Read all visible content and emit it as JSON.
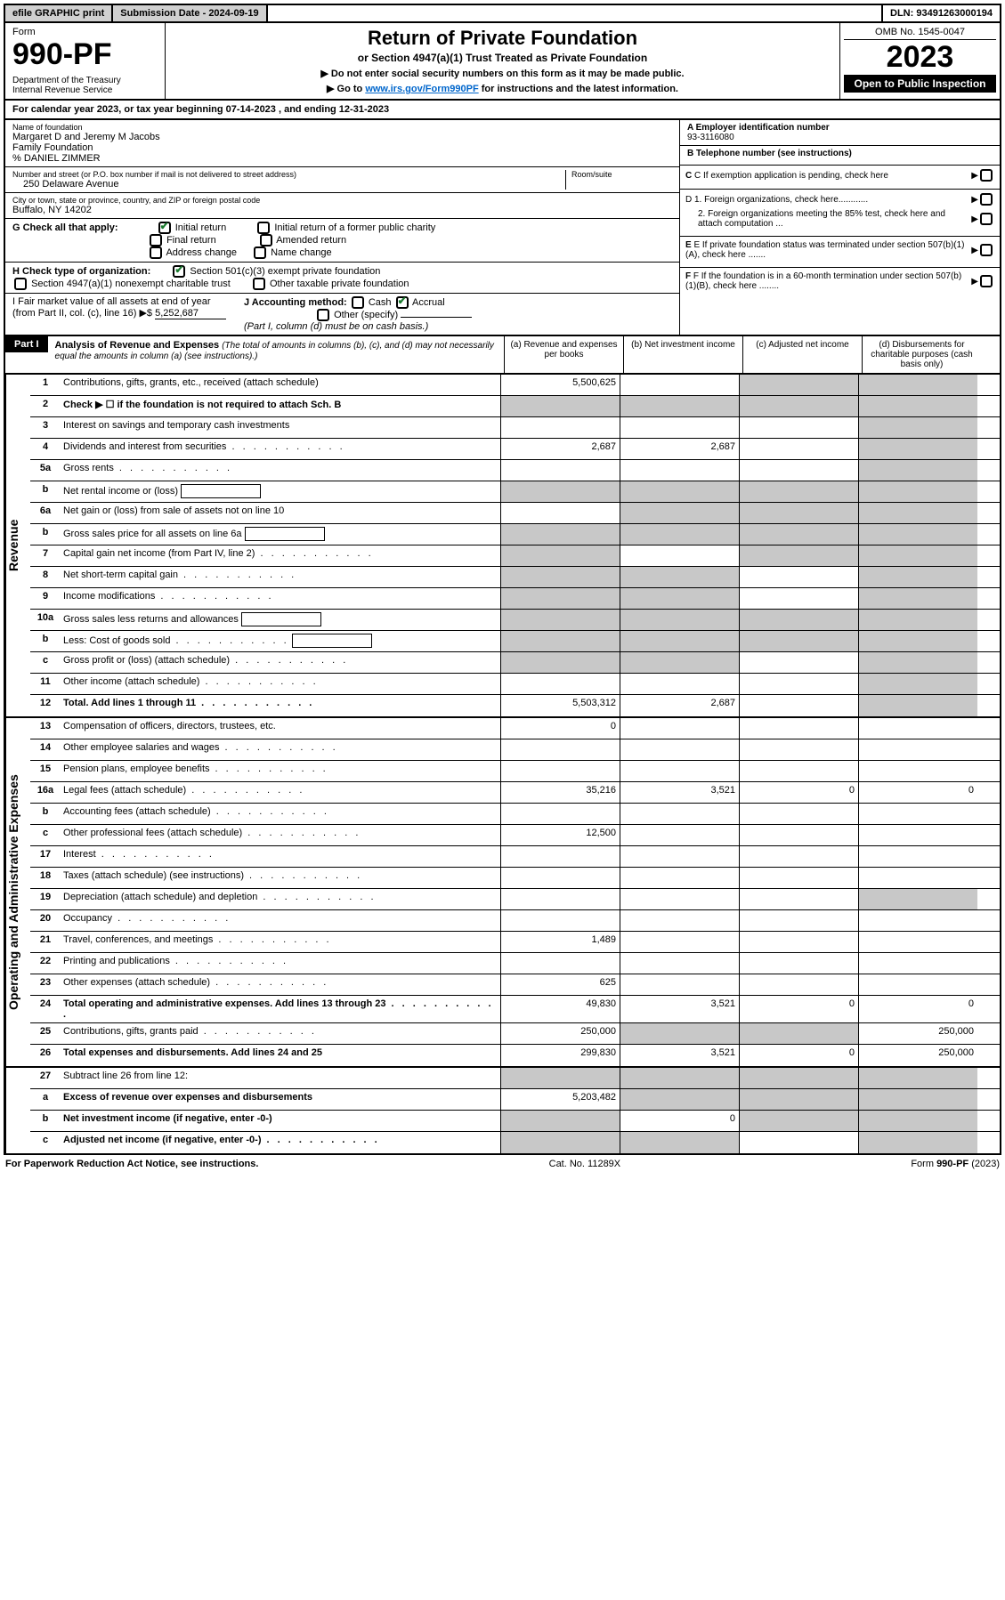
{
  "topbar": {
    "efile": "efile GRAPHIC print",
    "submission": "Submission Date - 2024-09-19",
    "dln": "DLN: 93491263000194"
  },
  "header": {
    "form_label": "Form",
    "form_number": "990-PF",
    "dept1": "Department of the Treasury",
    "dept2": "Internal Revenue Service",
    "title": "Return of Private Foundation",
    "subtitle": "or Section 4947(a)(1) Trust Treated as Private Foundation",
    "notice1": "▶ Do not enter social security numbers on this form as it may be made public.",
    "notice2_pre": "▶ Go to ",
    "notice2_link": "www.irs.gov/Form990PF",
    "notice2_post": " for instructions and the latest information.",
    "omb": "OMB No. 1545-0047",
    "year": "2023",
    "open": "Open to Public Inspection"
  },
  "calyear": "For calendar year 2023, or tax year beginning 07-14-2023            , and ending 12-31-2023",
  "info": {
    "name_label": "Name of foundation",
    "name1": "Margaret D and Jeremy M Jacobs",
    "name2": "Family Foundation",
    "name3": "% DANIEL ZIMMER",
    "addr_label": "Number and street (or P.O. box number if mail is not delivered to street address)",
    "addr": "250 Delaware Avenue",
    "room_label": "Room/suite",
    "city_label": "City or town, state or province, country, and ZIP or foreign postal code",
    "city": "Buffalo, NY  14202",
    "a_label": "A Employer identification number",
    "a_val": "93-3116080",
    "b_label": "B Telephone number (see instructions)",
    "c_label": "C If exemption application is pending, check here",
    "g_label": "G Check all that apply:",
    "g_initial": "Initial return",
    "g_initial_former": "Initial return of a former public charity",
    "g_final": "Final return",
    "g_amended": "Amended return",
    "g_addr": "Address change",
    "g_name": "Name change",
    "d1": "D 1. Foreign organizations, check here............",
    "d2": "2. Foreign organizations meeting the 85% test, check here and attach computation ...",
    "h_label": "H Check type of organization:",
    "h_501c3": "Section 501(c)(3) exempt private foundation",
    "h_4947": "Section 4947(a)(1) nonexempt charitable trust",
    "h_other": "Other taxable private foundation",
    "e_label": "E If private foundation status was terminated under section 507(b)(1)(A), check here .......",
    "i_label": "I Fair market value of all assets at end of year (from Part II, col. (c), line 16)",
    "i_val": "5,252,687",
    "j_label": "J Accounting method:",
    "j_cash": "Cash",
    "j_accrual": "Accrual",
    "j_other": "Other (specify)",
    "j_note": "(Part I, column (d) must be on cash basis.)",
    "f_label": "F If the foundation is in a 60-month termination under section 507(b)(1)(B), check here ........"
  },
  "part1": {
    "label": "Part I",
    "title": "Analysis of Revenue and Expenses",
    "title_note": "(The total of amounts in columns (b), (c), and (d) may not necessarily equal the amounts in column (a) (see instructions).)",
    "col_a": "(a)  Revenue and expenses per books",
    "col_b": "(b)  Net investment income",
    "col_c": "(c)  Adjusted net income",
    "col_d": "(d)  Disbursements for charitable purposes (cash basis only)"
  },
  "sections": {
    "revenue": "Revenue",
    "expenses": "Operating and Administrative Expenses"
  },
  "rows": [
    {
      "n": "1",
      "t": "Contributions, gifts, grants, etc., received (attach schedule)",
      "a": "5,500,625",
      "b": "",
      "c": "s",
      "d": "s"
    },
    {
      "n": "2",
      "t": "Check ▶ ☐ if the foundation is not required to attach Sch. B",
      "bold": true,
      "wide": true
    },
    {
      "n": "3",
      "t": "Interest on savings and temporary cash investments",
      "a": "",
      "b": "",
      "c": "",
      "d": "s"
    },
    {
      "n": "4",
      "t": "Dividends and interest from securities",
      "dots": true,
      "a": "2,687",
      "b": "2,687",
      "c": "",
      "d": "s"
    },
    {
      "n": "5a",
      "t": "Gross rents",
      "dots": true,
      "a": "",
      "b": "",
      "c": "",
      "d": "s"
    },
    {
      "n": "b",
      "t": "Net rental income or (loss)",
      "inline": true,
      "a": "s",
      "b": "s",
      "c": "s",
      "d": "s"
    },
    {
      "n": "6a",
      "t": "Net gain or (loss) from sale of assets not on line 10",
      "a": "",
      "b": "s",
      "c": "s",
      "d": "s"
    },
    {
      "n": "b",
      "t": "Gross sales price for all assets on line 6a",
      "inline": true,
      "a": "s",
      "b": "s",
      "c": "s",
      "d": "s"
    },
    {
      "n": "7",
      "t": "Capital gain net income (from Part IV, line 2)",
      "dots": true,
      "a": "s",
      "b": "",
      "c": "s",
      "d": "s"
    },
    {
      "n": "8",
      "t": "Net short-term capital gain",
      "dots": true,
      "a": "s",
      "b": "s",
      "c": "",
      "d": "s"
    },
    {
      "n": "9",
      "t": "Income modifications",
      "dots": true,
      "a": "s",
      "b": "s",
      "c": "",
      "d": "s"
    },
    {
      "n": "10a",
      "t": "Gross sales less returns and allowances",
      "inline": true,
      "a": "s",
      "b": "s",
      "c": "s",
      "d": "s"
    },
    {
      "n": "b",
      "t": "Less: Cost of goods sold",
      "dots": true,
      "inline": true,
      "a": "s",
      "b": "s",
      "c": "s",
      "d": "s"
    },
    {
      "n": "c",
      "t": "Gross profit or (loss) (attach schedule)",
      "dots": true,
      "a": "s",
      "b": "s",
      "c": "",
      "d": "s"
    },
    {
      "n": "11",
      "t": "Other income (attach schedule)",
      "dots": true,
      "a": "",
      "b": "",
      "c": "",
      "d": "s"
    },
    {
      "n": "12",
      "t": "Total. Add lines 1 through 11",
      "bold": true,
      "dots": true,
      "a": "5,503,312",
      "b": "2,687",
      "c": "",
      "d": "s"
    }
  ],
  "exp_rows": [
    {
      "n": "13",
      "t": "Compensation of officers, directors, trustees, etc.",
      "a": "0",
      "b": "",
      "c": "",
      "d": ""
    },
    {
      "n": "14",
      "t": "Other employee salaries and wages",
      "dots": true,
      "a": "",
      "b": "",
      "c": "",
      "d": ""
    },
    {
      "n": "15",
      "t": "Pension plans, employee benefits",
      "dots": true,
      "a": "",
      "b": "",
      "c": "",
      "d": ""
    },
    {
      "n": "16a",
      "t": "Legal fees (attach schedule)",
      "dots": true,
      "a": "35,216",
      "b": "3,521",
      "c": "0",
      "d": "0"
    },
    {
      "n": "b",
      "t": "Accounting fees (attach schedule)",
      "dots": true,
      "a": "",
      "b": "",
      "c": "",
      "d": ""
    },
    {
      "n": "c",
      "t": "Other professional fees (attach schedule)",
      "dots": true,
      "a": "12,500",
      "b": "",
      "c": "",
      "d": ""
    },
    {
      "n": "17",
      "t": "Interest",
      "dots": true,
      "a": "",
      "b": "",
      "c": "",
      "d": ""
    },
    {
      "n": "18",
      "t": "Taxes (attach schedule) (see instructions)",
      "dots": true,
      "a": "",
      "b": "",
      "c": "",
      "d": ""
    },
    {
      "n": "19",
      "t": "Depreciation (attach schedule) and depletion",
      "dots": true,
      "a": "",
      "b": "",
      "c": "",
      "d": "s"
    },
    {
      "n": "20",
      "t": "Occupancy",
      "dots": true,
      "a": "",
      "b": "",
      "c": "",
      "d": ""
    },
    {
      "n": "21",
      "t": "Travel, conferences, and meetings",
      "dots": true,
      "a": "1,489",
      "b": "",
      "c": "",
      "d": ""
    },
    {
      "n": "22",
      "t": "Printing and publications",
      "dots": true,
      "a": "",
      "b": "",
      "c": "",
      "d": ""
    },
    {
      "n": "23",
      "t": "Other expenses (attach schedule)",
      "dots": true,
      "a": "625",
      "b": "",
      "c": "",
      "d": ""
    },
    {
      "n": "24",
      "t": "Total operating and administrative expenses. Add lines 13 through 23",
      "bold": true,
      "dots": true,
      "a": "49,830",
      "b": "3,521",
      "c": "0",
      "d": "0"
    },
    {
      "n": "25",
      "t": "Contributions, gifts, grants paid",
      "dots": true,
      "a": "250,000",
      "b": "s",
      "c": "s",
      "d": "250,000"
    },
    {
      "n": "26",
      "t": "Total expenses and disbursements. Add lines 24 and 25",
      "bold": true,
      "a": "299,830",
      "b": "3,521",
      "c": "0",
      "d": "250,000"
    }
  ],
  "net_rows": [
    {
      "n": "27",
      "t": "Subtract line 26 from line 12:",
      "a": "s",
      "b": "s",
      "c": "s",
      "d": "s"
    },
    {
      "n": "a",
      "t": "Excess of revenue over expenses and disbursements",
      "bold": true,
      "a": "5,203,482",
      "b": "s",
      "c": "s",
      "d": "s"
    },
    {
      "n": "b",
      "t": "Net investment income (if negative, enter -0-)",
      "bold": true,
      "a": "s",
      "b": "0",
      "c": "s",
      "d": "s"
    },
    {
      "n": "c",
      "t": "Adjusted net income (if negative, enter -0-)",
      "bold": true,
      "dots": true,
      "a": "s",
      "b": "s",
      "c": "",
      "d": "s"
    }
  ],
  "footer": {
    "left": "For Paperwork Reduction Act Notice, see instructions.",
    "center": "Cat. No. 11289X",
    "right": "Form 990-PF (2023)"
  }
}
